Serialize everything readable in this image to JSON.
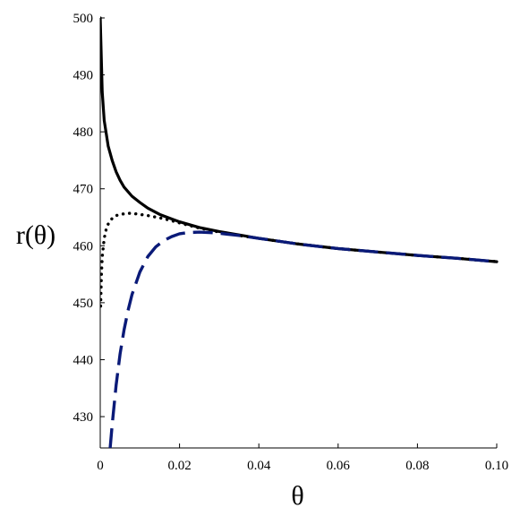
{
  "chart_data": {
    "type": "line",
    "title": "",
    "xlabel": "θ",
    "ylabel": "r(θ)",
    "xlim": [
      0,
      0.1
    ],
    "ylim": [
      424.5,
      500
    ],
    "grid": false,
    "x_ticks": [
      0,
      0.02,
      0.04,
      0.06,
      0.08,
      0.1
    ],
    "x_tick_labels": [
      "0",
      "0.02",
      "0.04",
      "0.06",
      "0.08",
      "0.10"
    ],
    "y_ticks": [
      430,
      440,
      450,
      460,
      470,
      480,
      490,
      500
    ],
    "y_tick_labels": [
      "430",
      "440",
      "450",
      "460",
      "470",
      "480",
      "490",
      "500"
    ],
    "series": [
      {
        "style": "solid",
        "color": "#000000",
        "x": [
          0.0,
          0.0005,
          0.001,
          0.002,
          0.003,
          0.004,
          0.005,
          0.006,
          0.008,
          0.01,
          0.012,
          0.015,
          0.018,
          0.02,
          0.025,
          0.03,
          0.035,
          0.04,
          0.05,
          0.06,
          0.07,
          0.08,
          0.09,
          0.1
        ],
        "y": [
          500,
          487,
          482,
          477.5,
          475,
          473,
          471.5,
          470.3,
          468.7,
          467.6,
          466.6,
          465.5,
          464.7,
          464.2,
          463.2,
          462.5,
          461.9,
          461.3,
          460.3,
          459.5,
          458.9,
          458.3,
          457.8,
          457.2
        ]
      },
      {
        "style": "dotted",
        "color": "#000000",
        "x": [
          0.0001,
          0.0003,
          0.0005,
          0.001,
          0.0015,
          0.002,
          0.003,
          0.004,
          0.005,
          0.006,
          0.007,
          0.008,
          0.009,
          0.01,
          0.012,
          0.015,
          0.018,
          0.02,
          0.025,
          0.03,
          0.035,
          0.04,
          0.05,
          0.06,
          0.07,
          0.08,
          0.09,
          0.1
        ],
        "y": [
          449.4,
          455,
          458,
          461.3,
          462.9,
          463.8,
          464.8,
          465.3,
          465.5,
          465.6,
          465.7,
          465.7,
          465.6,
          465.5,
          465.3,
          464.9,
          464.4,
          464.0,
          463.1,
          462.4,
          461.8,
          461.3,
          460.3,
          459.5,
          458.9,
          458.3,
          457.8,
          457.2
        ]
      },
      {
        "style": "dashed",
        "color": "#0a1a78",
        "x": [
          0.0025,
          0.003,
          0.004,
          0.005,
          0.006,
          0.007,
          0.008,
          0.01,
          0.012,
          0.014,
          0.016,
          0.018,
          0.02,
          0.022,
          0.025,
          0.028,
          0.03,
          0.035,
          0.04,
          0.05,
          0.06,
          0.07,
          0.08,
          0.09,
          0.1
        ],
        "y": [
          424.5,
          428.5,
          435.5,
          441.0,
          445.2,
          448.6,
          451.4,
          455.4,
          458.1,
          459.8,
          460.9,
          461.6,
          462.1,
          462.3,
          462.4,
          462.3,
          462.2,
          461.8,
          461.3,
          460.3,
          459.5,
          458.9,
          458.3,
          457.8,
          457.2
        ]
      }
    ]
  }
}
